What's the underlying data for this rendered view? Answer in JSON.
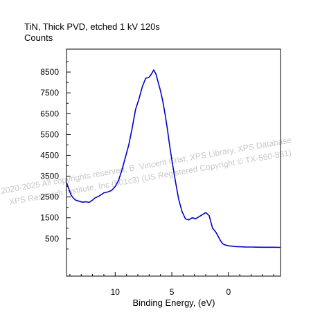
{
  "chart_data": {
    "type": "line",
    "title": "TiN, Thick PVD, etched 1 kV 120s",
    "ylabel": "Counts",
    "xlabel": "Binding Energy, (eV)",
    "xlim": [
      14.3,
      -4.6
    ],
    "ylim": [
      -1300,
      9600
    ],
    "x_ticks": [
      10,
      5,
      0
    ],
    "y_ticks": [
      500,
      1500,
      2500,
      3500,
      4500,
      5500,
      6500,
      7500,
      8500
    ],
    "x_tick_labels": [
      "10",
      "5",
      "0"
    ],
    "y_tick_labels": [
      "500",
      "1500",
      "2500",
      "3500",
      "4500",
      "5500",
      "6500",
      "7500",
      "8500"
    ],
    "line_color": "#0000cc",
    "grid": false,
    "series": [
      {
        "x": [
          14.3,
          14.1,
          13.9,
          13.7,
          13.5,
          13.2,
          12.9,
          12.6,
          12.3,
          12.0,
          11.8,
          11.6,
          11.4,
          11.2,
          11.0,
          10.8,
          10.6,
          10.3,
          10.0,
          9.7,
          9.4,
          9.1,
          8.8,
          8.5,
          8.2,
          7.9,
          7.6,
          7.3,
          7.0,
          6.8,
          6.6,
          6.4,
          6.2,
          6.0,
          5.8,
          5.6,
          5.4,
          5.2,
          5.0,
          4.7,
          4.4,
          4.1,
          3.8,
          3.5,
          3.2,
          2.9,
          2.6,
          2.3,
          2.0,
          1.7,
          1.4,
          1.1,
          0.9,
          0.7,
          0.5,
          0.3,
          0.1,
          -0.1,
          -0.3,
          -0.6,
          -1.0,
          -1.5,
          -2.0,
          -2.5,
          -3.0,
          -3.5,
          -4.0,
          -4.6
        ],
        "y": [
          3200,
          2900,
          2600,
          2450,
          2350,
          2300,
          2250,
          2270,
          2240,
          2350,
          2450,
          2500,
          2550,
          2620,
          2700,
          2720,
          2750,
          2820,
          3000,
          3300,
          3800,
          4400,
          5000,
          5800,
          6700,
          7200,
          7800,
          8200,
          8250,
          8400,
          8600,
          8400,
          8000,
          7600,
          7100,
          6500,
          5800,
          5000,
          4300,
          3300,
          2400,
          1800,
          1450,
          1400,
          1500,
          1450,
          1550,
          1650,
          1750,
          1600,
          1000,
          800,
          600,
          400,
          250,
          200,
          170,
          150,
          140,
          120,
          110,
          100,
          95,
          90,
          85,
          85,
          85,
          80
        ]
      }
    ]
  },
  "watermark": {
    "line1": "2020-2025 All copyrights reserved,  B. Vincent Crist,  XPS Library, XPS Database",
    "line2": "XPS Research Institute, Inc (501c3)  (US Registered Copyright © TX-560-881)"
  }
}
